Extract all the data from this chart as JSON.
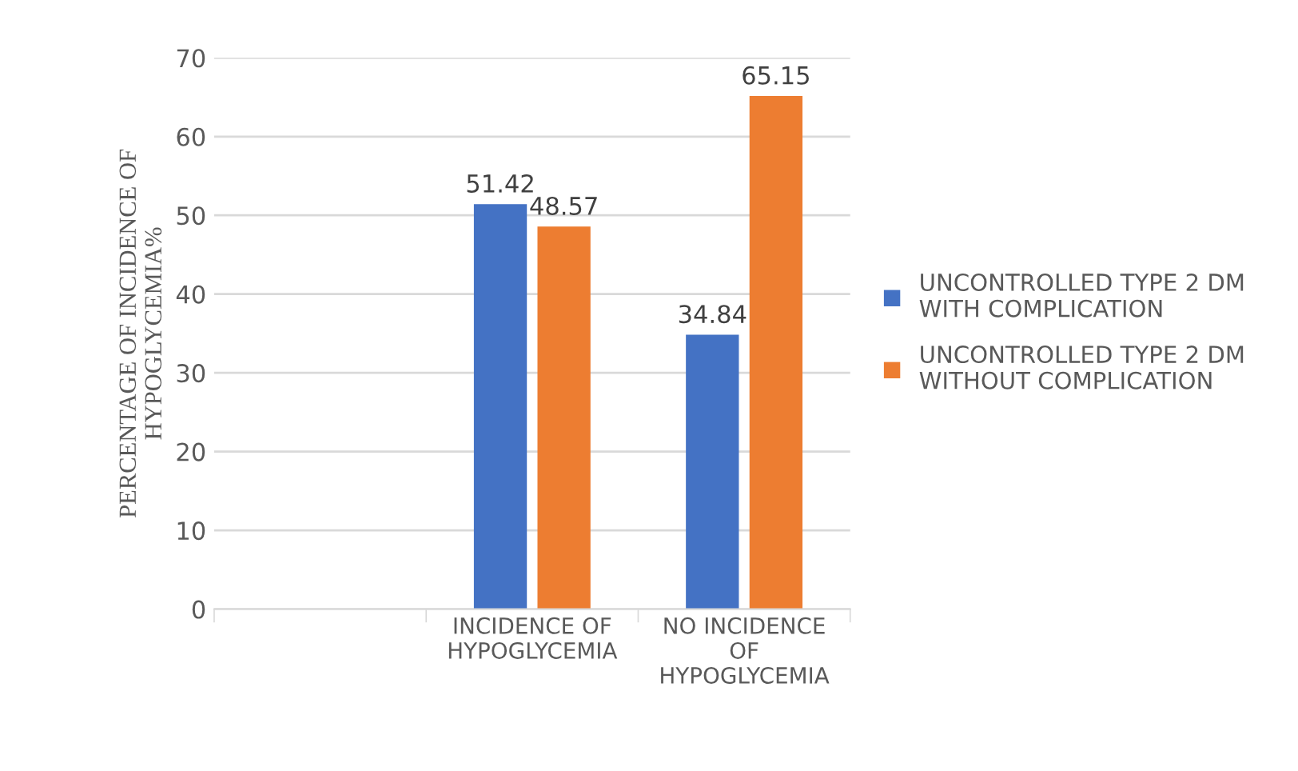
{
  "chart_data": {
    "type": "bar",
    "ylabel": "PERCENTAGE OF INCIDENCE OF\nHYPOGLYCEMIA%",
    "categories": [
      null,
      "INCIDENCE OF\nHYPOGLYCEMIA",
      "NO INCIDENCE\nOF\nHYPOGLYCEMIA"
    ],
    "series": [
      {
        "name": "UNCONTROLLED TYPE 2 DM\nWITH COMPLICATION",
        "color": "#4472c4",
        "values": [
          null,
          51.42,
          34.84
        ]
      },
      {
        "name": "UNCONTROLLED TYPE 2 DM\nWITHOUT COMPLICATION",
        "color": "#ed7d31",
        "values": [
          null,
          48.57,
          65.15
        ]
      }
    ],
    "ylim": [
      0,
      70
    ],
    "yticks": [
      0,
      10,
      20,
      30,
      40,
      50,
      60,
      70
    ],
    "grid": "y",
    "legend": "right",
    "data_labels": true
  }
}
